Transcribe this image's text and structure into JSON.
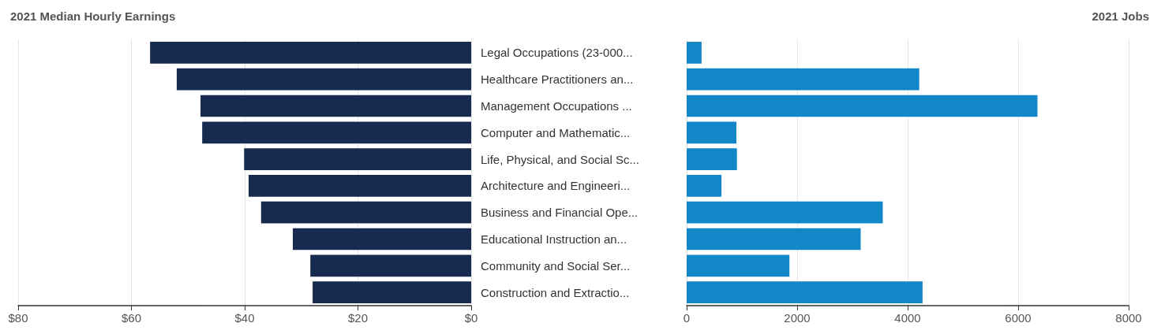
{
  "chart_data": [
    {
      "type": "bar",
      "orientation": "horizontal",
      "title": "2021 Median Hourly Earnings",
      "categories": [
        "Legal Occupations (23-000...",
        "Healthcare Practitioners an...",
        "Management Occupations ...",
        "Computer and Mathematic...",
        "Life, Physical, and Social Sc...",
        "Architecture and Engineeri...",
        "Business and Financial Ope...",
        "Educational Instruction an...",
        "Community and Social Ser...",
        "Construction and Extractio..."
      ],
      "values": [
        56.7,
        52.0,
        47.8,
        47.5,
        40.1,
        39.3,
        37.1,
        31.5,
        28.4,
        28.0
      ],
      "color": "#172a4f",
      "xlim": [
        80,
        0
      ],
      "xticks": [
        {
          "value": 80,
          "label": "$80"
        },
        {
          "value": 60,
          "label": "$60"
        },
        {
          "value": 40,
          "label": "$40"
        },
        {
          "value": 20,
          "label": "$20"
        },
        {
          "value": 0,
          "label": "$0"
        }
      ],
      "grid": "x"
    },
    {
      "type": "bar",
      "orientation": "horizontal",
      "title": "2021 Jobs",
      "categories": [
        null,
        null,
        null,
        null,
        null,
        null,
        null,
        null,
        null,
        null
      ],
      "values": [
        270,
        4210,
        6350,
        900,
        910,
        630,
        3550,
        3150,
        1860,
        4270
      ],
      "color": "#1287c7",
      "xlim": [
        0,
        8000
      ],
      "xticks": [
        0,
        2000,
        4000,
        6000,
        8000
      ],
      "grid": "x"
    }
  ]
}
